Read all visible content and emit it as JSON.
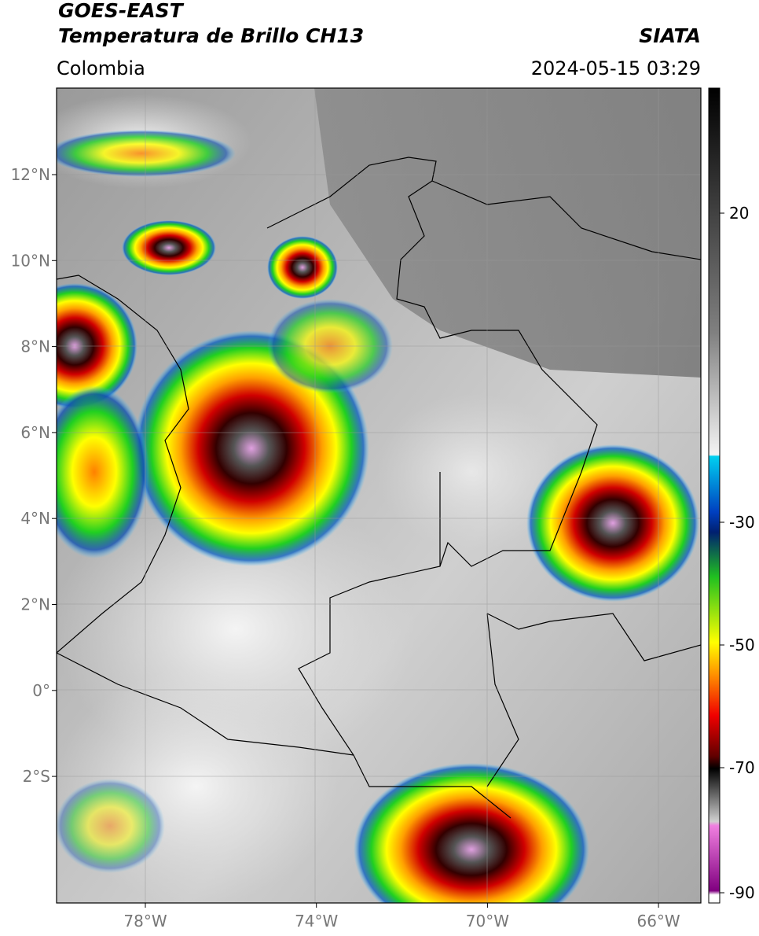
{
  "header": {
    "title": "GOES-EAST",
    "subtitle": "Temperatura de Brillo CH13",
    "region": "Colombia",
    "source": "SIATA",
    "datetime": "2024-05-15 03:29"
  },
  "map": {
    "lat_labels": [
      "12°N",
      "10°N",
      "8°N",
      "6°N",
      "4°N",
      "2°N",
      "0°",
      "2°S"
    ],
    "lon_labels": [
      "78°W",
      "74°W",
      "70°W",
      "66°W"
    ]
  },
  "colorbar": {
    "ticks": [
      "20",
      "-30",
      "-50",
      "-70",
      "-90"
    ]
  }
}
